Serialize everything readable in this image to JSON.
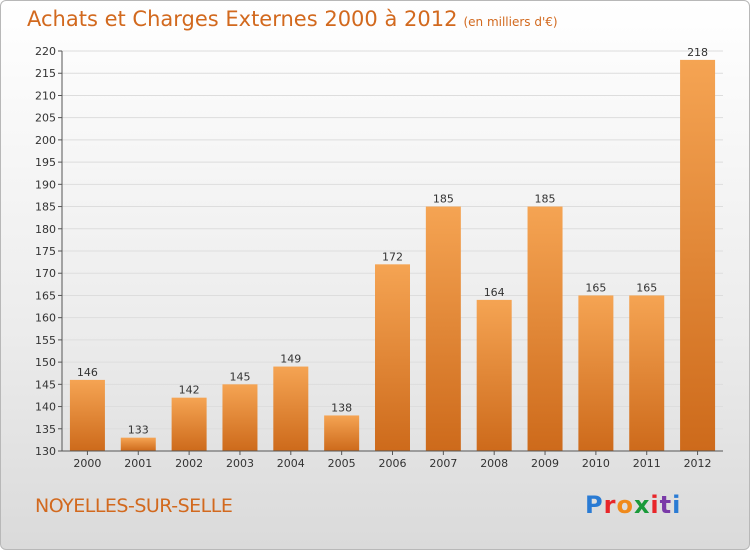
{
  "header": {
    "title": "Achats et Charges Externes 2000 à 2012",
    "unit": "(en milliers d'€)"
  },
  "footer": {
    "location": "NOYELLES-SUR-SELLE",
    "logo_text": "Proxiti",
    "logo_colors": [
      "#2a7bd4",
      "#e8262a",
      "#f08a1c",
      "#1a9a3a",
      "#e8262a",
      "#7a3aa8",
      "#2a7bd4"
    ]
  },
  "chart_data": {
    "type": "bar",
    "title": "Achats et Charges Externes 2000 à 2012",
    "subtitle": "(en milliers d'€)",
    "categories": [
      "2000",
      "2001",
      "2002",
      "2003",
      "2004",
      "2005",
      "2006",
      "2007",
      "2008",
      "2009",
      "2010",
      "2011",
      "2012"
    ],
    "values": [
      146,
      133,
      142,
      145,
      149,
      138,
      172,
      185,
      164,
      185,
      165,
      165,
      218
    ],
    "ylim": [
      130,
      220
    ],
    "ytick_step": 5,
    "grid": true,
    "colors": {
      "bar_top": "#f5a453",
      "bar_bottom": "#cd6a1b",
      "grid": "#dddddd"
    }
  }
}
